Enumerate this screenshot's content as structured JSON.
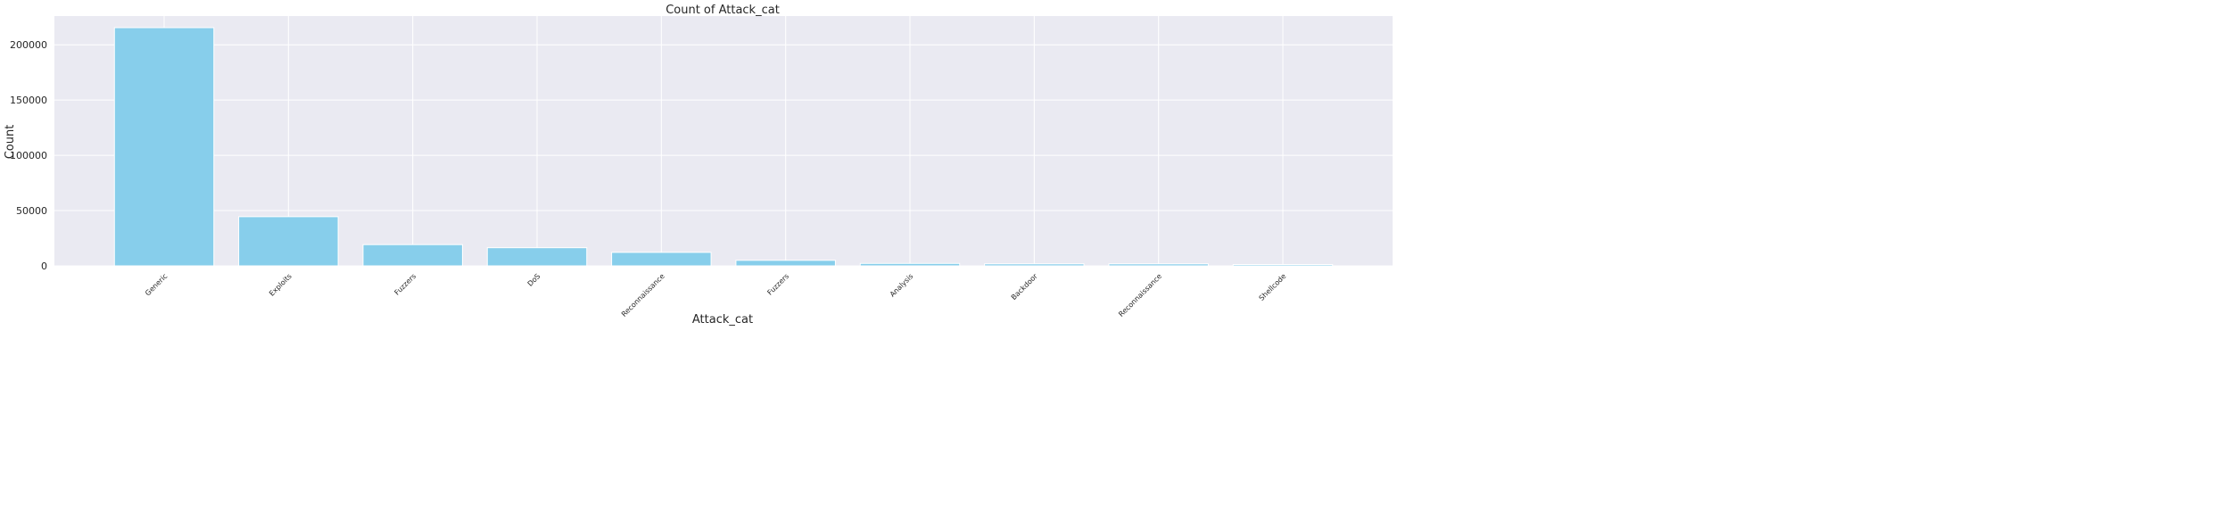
{
  "chart_data": {
    "type": "bar",
    "title": "Count of Attack_cat",
    "xlabel": "Attack_cat",
    "ylabel": "Count",
    "categories": [
      "Generic",
      "Exploits",
      "Fuzzers",
      "DoS",
      "Reconnaissance",
      "Fuzzers",
      "Analysis",
      "Backdoor",
      "Reconnaissance",
      "Shellcode"
    ],
    "values": [
      215500,
      44500,
      19200,
      16400,
      12200,
      5000,
      2200,
      1800,
      1800,
      1200
    ],
    "ylim": [
      0,
      226000
    ],
    "yticks": [
      0,
      50000,
      100000,
      150000,
      200000
    ],
    "grid": true,
    "bar_color": "#87ceeb",
    "plot_background": "#eaeaf2",
    "grid_color": "#ffffff"
  }
}
